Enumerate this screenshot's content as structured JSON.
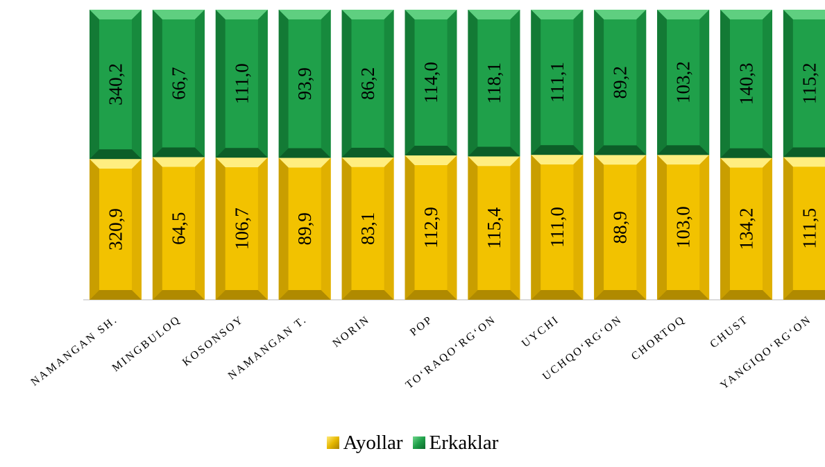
{
  "chart_data": {
    "type": "bar",
    "stacked": true,
    "normalized": true,
    "categories": [
      "NAMANGAN  SH.",
      "MINGBULOQ",
      "KOSONSOY",
      "NAMANGAN T.",
      "NORIN",
      "POP",
      "TO‘RAQO‘RG‘ON",
      "UYCHI",
      "UCHQO‘RG‘ON",
      "CHORTOQ",
      "CHUST",
      "YANGIQO‘RG‘ON"
    ],
    "series": [
      {
        "name": "Ayollar",
        "color": "#F2C200",
        "values": [
          320.9,
          64.5,
          106.7,
          89.9,
          83.1,
          112.9,
          115.4,
          111.0,
          88.9,
          103.0,
          134.2,
          111.5
        ],
        "labels": [
          "320,9",
          "64,5",
          "106,7",
          "89,9",
          "83,1",
          "112,9",
          "115,4",
          "111,0",
          "88,9",
          "103,0",
          "134,2",
          "111,5"
        ]
      },
      {
        "name": "Erkaklar",
        "color": "#1FA04A",
        "values": [
          340.2,
          66.7,
          111.0,
          93.9,
          86.2,
          114.0,
          118.1,
          111.1,
          89.2,
          103.2,
          140.3,
          115.2
        ],
        "labels": [
          "340,2",
          "66,7",
          "111,0",
          "93,9",
          "86,2",
          "114,0",
          "118,1",
          "111,1",
          "89,2",
          "103,2",
          "140,3",
          "115,2"
        ]
      }
    ],
    "legend_position": "bottom",
    "grid": false
  }
}
